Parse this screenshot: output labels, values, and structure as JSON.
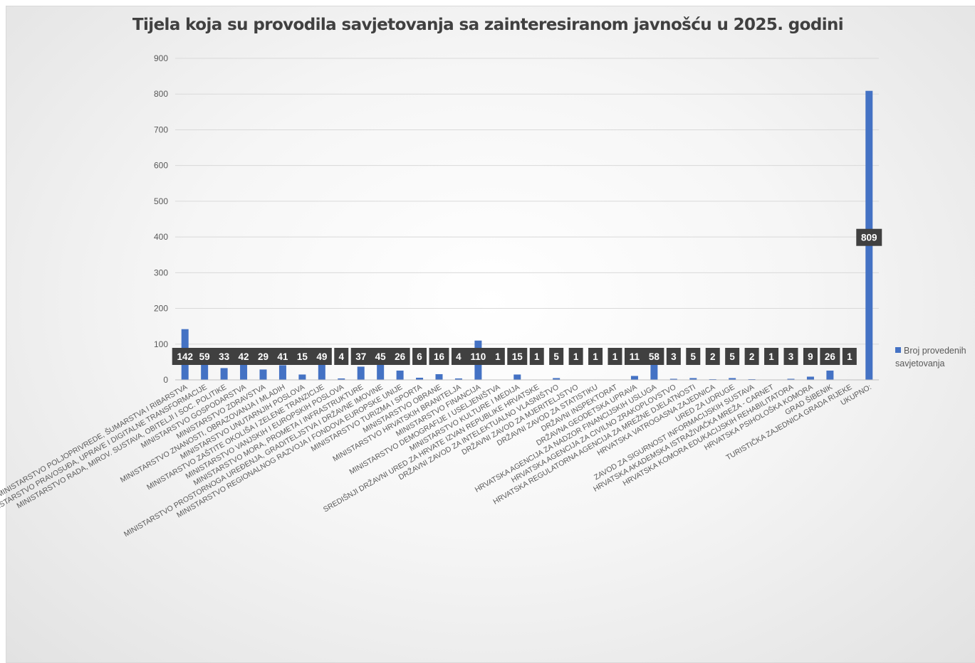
{
  "chart_data": {
    "type": "bar",
    "title": "Tijela koja su provodila savjetovanja sa zainteresiranom javnošću u 2025. godini",
    "xlabel": "",
    "ylabel": "",
    "ylim": [
      0,
      900
    ],
    "yticks": [
      0,
      100,
      200,
      300,
      400,
      500,
      600,
      700,
      800,
      900
    ],
    "grid": true,
    "legend_position": "right",
    "colors": {
      "bar": "#4472c4",
      "label_bg": "#404040",
      "label_text": "#ffffff",
      "grid": "#d9d9d9",
      "tick_text": "#595959"
    },
    "categories": [
      "MINISTARSTVO POLJOPRIVREDE, ŠUMARSTVA I RIBARSTVA",
      "MINISTARSTVO PRAVOSUĐA, UPRAVE I DIGITALNE TRANSFORMACIJE",
      "MINISTARSTVO RADA, MIROV. SUSTAVA, OBITELJI I SOC. POLITIKE",
      "MINISTARSTVO GOSPODARSTVA",
      "MINISTARSTVO ZDRAVSTVA",
      "MINISTARSTVO ZNANOSTI, OBRAZOVANJA I MLADIH",
      "MINISTARSTVO UNUTARNJIH POSLOVA",
      "MINISTARSTVO ZAŠTITE OKOLIŠA I ZELENE TRANZICIJE",
      "MINISTARSTVO VANJSKIH I EUROPSKIH POSLOVA",
      "MINISTARSTVO MORA, PROMETA I INFRASTRUKTURE",
      "MINISTARSTVO PROSTORNOGA UREĐENJA, GRADITELJSTVA I DRŽAVNE IMOVINE",
      "MINISTARSTVO REGIONALNOG RAZVOJA I FONDOVA EUROPSKE UNIJE",
      "MINISTARSTVO TURIZMA I SPORTA",
      "MINISTARSTVO OBRANE",
      "MINISTARSTVO HRVATSKIH BRANITELJA",
      "MINISTARSTVO FINANCIJA",
      "MINISTARSTVO DEMOGRAFIJE I USELJENIŠTVA",
      "MINISTARSTVO KULTURE I MEDIJA",
      "SREDIŠNJI DRŽAVNI URED ZA HRVATE IZVAN REPUBLIKE HRVATSKE",
      "DRŽAVNI ZAVOD ZA INTELEKTUALNO VLASNIŠTVO",
      "DRŽAVNI ZAVOD ZA MJERITELJSTVO",
      "DRŽAVNI ZAVOD ZA STATISTIKU",
      "DRŽAVNI INSPEKTORAT",
      "DRŽAVNA GEODETSKA UPRAVA",
      "HRVATSKA AGENCIJA ZA NADZOR FINANCIJSKIH USLUGA",
      "HRVATSKA AGENCIJA ZA CIVILNO ZRAKOPLOVSTVO",
      "HRVATSKA REGULATORNA AGENCIJA ZA MREŽNE DJELATNOSTI",
      "HRVATSKA VATROGASNA ZAJEDNICA",
      "URED ZA UDRUGE",
      "ZAVOD ZA SIGURNOST INFORMACIJSKIH SUSTAVA",
      "HRVATSKA AKADEMSKA ISTRAŽIVAČKA MREŽA - CARNET",
      "HRVATSKA KOMORA EDUKACIJSKIH REHABILITATORA",
      "HRVATSKA PSIHOLOŠKA KOMORA",
      "GRAD ŠIBENIK",
      "TURISTIČKA ZAJEDNICA GRADA RIJEKE",
      "UKUPNO:"
    ],
    "series": [
      {
        "name": "Broj provedenih savjetovanja",
        "values": [
          142,
          59,
          33,
          42,
          29,
          41,
          15,
          49,
          4,
          37,
          45,
          26,
          6,
          16,
          4,
          110,
          1,
          15,
          1,
          5,
          1,
          1,
          1,
          11,
          58,
          3,
          5,
          2,
          5,
          2,
          1,
          3,
          9,
          26,
          1,
          809
        ]
      }
    ]
  }
}
